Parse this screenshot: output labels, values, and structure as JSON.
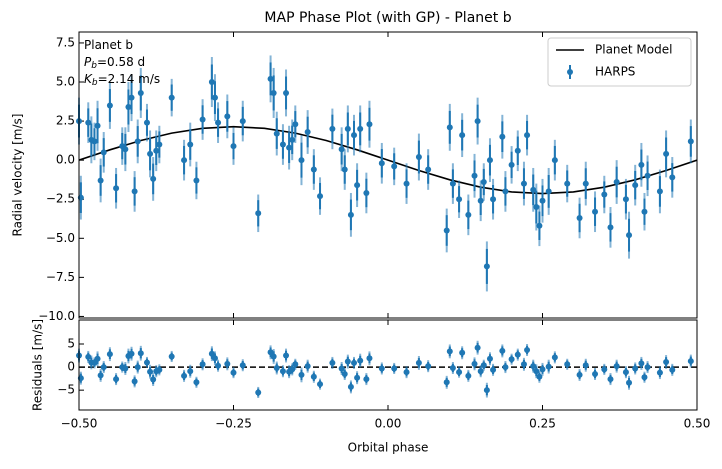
{
  "chart_data": [
    {
      "type": "errorbar",
      "title": "MAP Phase Plot (with GP) - Planet b",
      "ylabel": "Radial velocity [m/s]",
      "annotation": [
        {
          "text": "Planet b"
        },
        {
          "symbol": "P",
          "subscript": "b",
          "text": "=0.58 d"
        },
        {
          "symbol": "K",
          "subscript": "b",
          "text": "=2.14 m/s"
        }
      ],
      "xlim": [
        -0.5,
        0.5
      ],
      "ylim": [
        -10.1,
        8.2
      ],
      "yticks": [
        7.5,
        {
          "value": 5,
          "label": "5.0"
        },
        2.5,
        {
          "value": 0,
          "label": "0.0"
        },
        {
          "value": -2.5,
          "label": "−2.5"
        },
        {
          "value": -5,
          "label": "−5.0"
        },
        {
          "value": -7.5,
          "label": "−7.5"
        },
        {
          "value": -10,
          "label": "−10.0"
        }
      ],
      "legend": "upper right",
      "series": [
        {
          "name": "Planet Model",
          "kind": "line",
          "color": "#000000",
          "x": [
            -0.5,
            -0.45,
            -0.4,
            -0.35,
            -0.3,
            -0.25,
            -0.2,
            -0.15,
            -0.1,
            -0.05,
            0,
            0.05,
            0.1,
            0.15,
            0.2,
            0.25,
            0.3,
            0.35,
            0.4,
            0.45,
            0.5
          ],
          "values": [
            0,
            0.661,
            1.258,
            1.731,
            2.035,
            2.14,
            2.035,
            1.731,
            1.258,
            0.661,
            0,
            -0.661,
            -1.258,
            -1.731,
            -2.035,
            -2.14,
            -2.035,
            -1.731,
            -1.258,
            -0.661,
            0
          ]
        },
        {
          "name": "HARPS",
          "kind": "errorbar",
          "color": "#1f77b4",
          "x": [
            -0.5,
            -0.497,
            -0.485,
            -0.48,
            -0.475,
            -0.47,
            -0.465,
            -0.46,
            -0.45,
            -0.44,
            -0.43,
            -0.425,
            -0.42,
            -0.415,
            -0.41,
            -0.405,
            -0.4,
            -0.39,
            -0.385,
            -0.38,
            -0.375,
            -0.37,
            -0.35,
            -0.33,
            -0.32,
            -0.31,
            -0.3,
            -0.285,
            -0.28,
            -0.275,
            -0.26,
            -0.25,
            -0.235,
            -0.21,
            -0.19,
            -0.185,
            -0.18,
            -0.17,
            -0.165,
            -0.16,
            -0.155,
            -0.15,
            -0.14,
            -0.13,
            -0.12,
            -0.11,
            -0.09,
            -0.075,
            -0.07,
            -0.065,
            -0.06,
            -0.055,
            -0.05,
            -0.045,
            -0.035,
            -0.03,
            -0.01,
            0.01,
            0.03,
            0.05,
            0.065,
            0.095,
            0.1,
            0.105,
            0.115,
            0.12,
            0.13,
            0.14,
            0.145,
            0.15,
            0.155,
            0.16,
            0.165,
            0.17,
            0.185,
            0.19,
            0.2,
            0.21,
            0.22,
            0.225,
            0.235,
            0.24,
            0.245,
            0.25,
            0.26,
            0.27,
            0.29,
            0.31,
            0.32,
            0.335,
            0.35,
            0.36,
            0.37,
            0.385,
            0.39,
            0.4,
            0.41,
            0.415,
            0.42,
            0.44,
            0.45,
            0.46,
            0.49
          ],
          "values": [
            2.5,
            -2.4,
            2.4,
            1.3,
            1.2,
            2.2,
            -1.3,
            0.5,
            3.5,
            -1.8,
            0.9,
            0.7,
            3.4,
            4.0,
            -2.0,
            1.2,
            4.3,
            2.4,
            0.4,
            -1.2,
            0.6,
            1.0,
            4.0,
            0.0,
            1.0,
            -1.3,
            2.6,
            5.0,
            4.0,
            2.4,
            2.8,
            0.9,
            2.5,
            -3.4,
            5.2,
            4.3,
            1.7,
            1.0,
            4.3,
            0.8,
            1.3,
            2.3,
            0.0,
            1.8,
            -0.6,
            -2.3,
            2.0,
            0.7,
            -0.6,
            2.0,
            -3.5,
            1.6,
            -1.6,
            2.0,
            -2.1,
            2.3,
            -0.2,
            -0.4,
            -1.5,
            0.2,
            -0.6,
            -4.5,
            2.1,
            -1.5,
            -2.5,
            1.6,
            -3.5,
            -1.0,
            2.5,
            -2.6,
            -1.4,
            -6.8,
            0.0,
            -2.5,
            1.5,
            -2.0,
            -0.3,
            0.6,
            -1.5,
            1.6,
            -1.9,
            -3.0,
            -4.2,
            -2.6,
            -2.0,
            0.0,
            -1.5,
            -3.7,
            -1.5,
            -3.3,
            -2.2,
            -4.3,
            -1.4,
            -2.5,
            -4.8,
            -1.6,
            -0.3,
            -3.3,
            -1.0,
            -2.0,
            0.4,
            -1.1,
            1.2
          ],
          "errors": [
            1.5,
            1.4,
            1.3,
            1.5,
            1.2,
            1.6,
            1.4,
            1.3,
            1.5,
            1.3,
            1.2,
            1.4,
            1.6,
            1.5,
            1.3,
            1.4,
            1.6,
            1.2,
            1.5,
            1.4,
            1.3,
            1.2,
            1.2,
            1.3,
            1.4,
            1.2,
            1.3,
            1.6,
            1.5,
            1.3,
            1.4,
            1.2,
            1.3,
            1.2,
            1.5,
            1.6,
            1.4,
            1.3,
            1.5,
            1.4,
            1.3,
            1.2,
            1.6,
            1.4,
            1.3,
            1.2,
            1.3,
            1.4,
            1.3,
            1.5,
            1.4,
            1.3,
            1.4,
            1.5,
            1.3,
            1.5,
            1.3,
            1.2,
            1.3,
            1.5,
            1.3,
            1.4,
            1.5,
            1.3,
            1.2,
            1.4,
            1.3,
            1.4,
            1.5,
            1.3,
            1.2,
            1.6,
            1.4,
            1.3,
            1.4,
            1.3,
            1.2,
            1.3,
            1.4,
            1.3,
            1.4,
            1.5,
            1.3,
            1.4,
            1.5,
            1.3,
            1.2,
            1.3,
            1.4,
            1.3,
            1.2,
            1.3,
            1.4,
            1.3,
            1.5,
            1.3,
            1.4,
            1.2,
            1.3,
            1.4,
            1.5,
            1.3,
            1.4
          ]
        }
      ]
    },
    {
      "type": "errorbar",
      "xlabel": "Orbital phase",
      "ylabel": "Residuals [m/s]",
      "xlim": [
        -0.5,
        0.5
      ],
      "ylim": [
        -9.3,
        10.2
      ],
      "xticks": [
        {
          "value": -0.5,
          "label": "−0.50"
        },
        {
          "value": -0.25,
          "label": "−0.25"
        },
        {
          "value": 0,
          "label": "0.00"
        },
        {
          "value": 0.25,
          "label": "0.25"
        },
        {
          "value": 0.5,
          "label": "0.50"
        }
      ],
      "yticks": [
        5,
        0,
        {
          "value": -5,
          "label": "−5"
        }
      ],
      "hline": 0,
      "series": [
        {
          "color": "#1f77b4",
          "x": [
            -0.5,
            -0.497,
            -0.485,
            -0.48,
            -0.475,
            -0.47,
            -0.465,
            -0.46,
            -0.45,
            -0.44,
            -0.43,
            -0.425,
            -0.42,
            -0.415,
            -0.41,
            -0.405,
            -0.4,
            -0.39,
            -0.385,
            -0.38,
            -0.375,
            -0.37,
            -0.35,
            -0.33,
            -0.32,
            -0.31,
            -0.3,
            -0.285,
            -0.28,
            -0.275,
            -0.26,
            -0.25,
            -0.235,
            -0.21,
            -0.19,
            -0.185,
            -0.18,
            -0.17,
            -0.165,
            -0.16,
            -0.155,
            -0.15,
            -0.14,
            -0.13,
            -0.12,
            -0.11,
            -0.09,
            -0.075,
            -0.07,
            -0.065,
            -0.06,
            -0.055,
            -0.05,
            -0.045,
            -0.035,
            -0.03,
            -0.01,
            0.01,
            0.03,
            0.05,
            0.065,
            0.095,
            0.1,
            0.105,
            0.115,
            0.12,
            0.13,
            0.14,
            0.145,
            0.15,
            0.155,
            0.16,
            0.165,
            0.17,
            0.185,
            0.19,
            0.2,
            0.21,
            0.22,
            0.225,
            0.235,
            0.24,
            0.245,
            0.25,
            0.26,
            0.27,
            0.29,
            0.31,
            0.32,
            0.335,
            0.35,
            0.36,
            0.37,
            0.385,
            0.39,
            0.4,
            0.41,
            0.415,
            0.42,
            0.44,
            0.45,
            0.46,
            0.49
          ],
          "values": [
            2.5,
            -2.4,
            2.2,
            1.0,
            0.9,
            1.8,
            -1.8,
            0.0,
            2.8,
            -2.6,
            0.0,
            -0.3,
            2.4,
            2.9,
            -3.1,
            0.0,
            3.0,
            1.0,
            -1.0,
            -2.7,
            -0.9,
            -0.6,
            2.3,
            -1.9,
            -0.9,
            -3.3,
            0.6,
            2.9,
            1.9,
            0.3,
            0.7,
            -1.2,
            0.4,
            -5.5,
            3.2,
            2.3,
            -0.2,
            -0.9,
            2.5,
            -1.0,
            -0.5,
            0.6,
            -1.7,
            0.2,
            -2.1,
            -3.7,
            0.9,
            -0.3,
            -1.5,
            1.2,
            -4.3,
            0.9,
            -2.3,
            1.4,
            -2.6,
            1.9,
            -0.3,
            -0.3,
            -1.1,
            0.9,
            0.2,
            -3.3,
            3.4,
            -0.2,
            -1.1,
            3.1,
            -1.9,
            0.7,
            4.2,
            -0.9,
            0.4,
            -5.0,
            1.8,
            -0.6,
            3.5,
            0.0,
            1.7,
            2.7,
            0.6,
            3.7,
            0.2,
            -0.9,
            -2.1,
            -0.5,
            0.1,
            2.1,
            0.6,
            -1.7,
            0.4,
            -1.5,
            -0.5,
            -2.6,
            0.2,
            -1.1,
            -3.4,
            -0.3,
            0.8,
            -2.2,
            0.0,
            -1.2,
            1.1,
            -0.6,
            1.3
          ],
          "errors": [
            1.5,
            1.4,
            1.3,
            1.5,
            1.2,
            1.6,
            1.4,
            1.3,
            1.5,
            1.3,
            1.2,
            1.4,
            1.6,
            1.5,
            1.3,
            1.4,
            1.6,
            1.2,
            1.5,
            1.4,
            1.3,
            1.2,
            1.2,
            1.3,
            1.4,
            1.2,
            1.3,
            1.6,
            1.5,
            1.3,
            1.4,
            1.2,
            1.3,
            1.2,
            1.5,
            1.6,
            1.4,
            1.3,
            1.5,
            1.4,
            1.3,
            1.2,
            1.6,
            1.4,
            1.3,
            1.2,
            1.3,
            1.4,
            1.3,
            1.5,
            1.4,
            1.3,
            1.4,
            1.5,
            1.3,
            1.5,
            1.3,
            1.2,
            1.3,
            1.5,
            1.3,
            1.4,
            1.5,
            1.3,
            1.2,
            1.4,
            1.3,
            1.4,
            1.5,
            1.3,
            1.2,
            1.6,
            1.4,
            1.3,
            1.4,
            1.3,
            1.2,
            1.3,
            1.4,
            1.3,
            1.4,
            1.5,
            1.3,
            1.4,
            1.5,
            1.3,
            1.2,
            1.3,
            1.4,
            1.3,
            1.2,
            1.3,
            1.4,
            1.3,
            1.5,
            1.3,
            1.4,
            1.2,
            1.3,
            1.4,
            1.5,
            1.3,
            1.4
          ]
        }
      ]
    }
  ]
}
